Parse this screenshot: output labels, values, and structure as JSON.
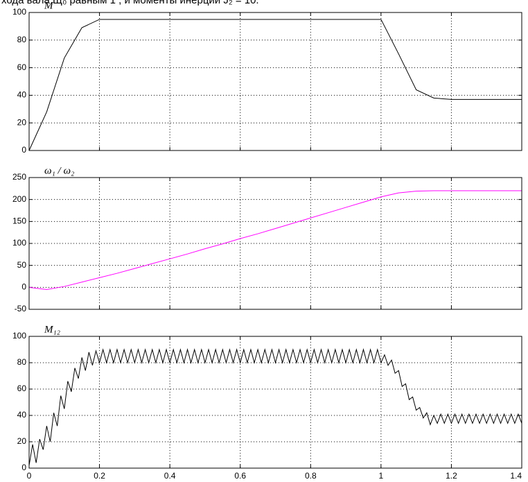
{
  "caption": "хода вала Щ₀ равным 1 , и моменты инерции J₂ = 10.",
  "chart_data": [
    {
      "type": "line",
      "title": "M",
      "color": "#000000",
      "grid": true,
      "show_xtick_labels": false,
      "xlim": [
        0,
        1.4
      ],
      "xticks": [
        0,
        0.2,
        0.4,
        0.6,
        0.8,
        1,
        1.2,
        1.4
      ],
      "ylim": [
        0,
        100
      ],
      "yticks": [
        0,
        20,
        40,
        60,
        80,
        100
      ],
      "x": [
        0,
        0.05,
        0.1,
        0.15,
        0.2,
        0.25,
        0.3,
        0.35,
        0.4,
        0.45,
        0.5,
        0.55,
        0.6,
        0.65,
        0.7,
        0.75,
        0.8,
        0.85,
        0.9,
        0.95,
        1,
        1.05,
        1.1,
        1.15,
        1.2,
        1.25,
        1.3,
        1.35,
        1.4
      ],
      "values": [
        0,
        28,
        67,
        89,
        95,
        95,
        95,
        95,
        95,
        95,
        95,
        95,
        95,
        95,
        95,
        95,
        95,
        95,
        95,
        95,
        95,
        70,
        44,
        38,
        37,
        37,
        37,
        37,
        37
      ]
    },
    {
      "type": "line",
      "title": "ω₁ / ω₂",
      "color": "#ff00ff",
      "grid": true,
      "show_xtick_labels": false,
      "xlim": [
        0,
        1.4
      ],
      "xticks": [
        0,
        0.2,
        0.4,
        0.6,
        0.8,
        1,
        1.2,
        1.4
      ],
      "ylim": [
        -50,
        250
      ],
      "yticks": [
        -50,
        0,
        50,
        100,
        150,
        200,
        250
      ],
      "x": [
        0,
        0.05,
        0.1,
        0.15,
        0.2,
        0.25,
        0.3,
        0.35,
        0.4,
        0.45,
        0.5,
        0.55,
        0.6,
        0.65,
        0.7,
        0.75,
        0.8,
        0.85,
        0.9,
        0.95,
        1,
        1.05,
        1.1,
        1.15,
        1.2,
        1.25,
        1.3,
        1.35,
        1.4
      ],
      "values": [
        0,
        -5,
        2,
        12,
        22,
        32,
        43,
        54,
        65,
        76,
        88,
        99,
        111,
        122,
        134,
        146,
        158,
        170,
        182,
        194,
        206,
        215,
        219,
        220,
        220,
        220,
        220,
        220,
        220
      ]
    },
    {
      "type": "line",
      "title": "M₁₂",
      "color": "#000000",
      "grid": true,
      "show_xtick_labels": true,
      "xlim": [
        0,
        1.4
      ],
      "xticks": [
        0,
        0.2,
        0.4,
        0.6,
        0.8,
        1,
        1.2,
        1.4
      ],
      "ylim": [
        0,
        100
      ],
      "yticks": [
        0,
        20,
        40,
        60,
        80,
        100
      ],
      "x": [
        0,
        0.01,
        0.02,
        0.03,
        0.04,
        0.05,
        0.06,
        0.07,
        0.08,
        0.09,
        0.1,
        0.11,
        0.12,
        0.13,
        0.14,
        0.15,
        0.16,
        0.17,
        0.18,
        0.19,
        0.2,
        0.21,
        0.22,
        0.23,
        0.24,
        0.25,
        0.26,
        0.27,
        0.28,
        0.29,
        0.3,
        0.31,
        0.32,
        0.33,
        0.34,
        0.35,
        0.36,
        0.37,
        0.38,
        0.39,
        0.4,
        0.41,
        0.42,
        0.43,
        0.44,
        0.45,
        0.46,
        0.47,
        0.48,
        0.49,
        0.5,
        0.51,
        0.52,
        0.53,
        0.54,
        0.55,
        0.56,
        0.57,
        0.58,
        0.59,
        0.6,
        0.61,
        0.62,
        0.63,
        0.64,
        0.65,
        0.66,
        0.67,
        0.68,
        0.69,
        0.7,
        0.71,
        0.72,
        0.73,
        0.74,
        0.75,
        0.76,
        0.77,
        0.78,
        0.79,
        0.8,
        0.81,
        0.82,
        0.83,
        0.84,
        0.85,
        0.86,
        0.87,
        0.88,
        0.89,
        0.9,
        0.91,
        0.92,
        0.93,
        0.94,
        0.95,
        0.96,
        0.97,
        0.98,
        0.99,
        1,
        1.01,
        1.02,
        1.03,
        1.04,
        1.05,
        1.06,
        1.07,
        1.08,
        1.09,
        1.1,
        1.11,
        1.12,
        1.13,
        1.14,
        1.15,
        1.16,
        1.17,
        1.18,
        1.19,
        1.2,
        1.21,
        1.22,
        1.23,
        1.24,
        1.25,
        1.26,
        1.27,
        1.28,
        1.29,
        1.3,
        1.31,
        1.32,
        1.33,
        1.34,
        1.35,
        1.36,
        1.37,
        1.38,
        1.39,
        1.4
      ],
      "values": [
        2,
        18,
        4,
        22,
        14,
        32,
        20,
        42,
        32,
        55,
        45,
        66,
        58,
        76,
        68,
        84,
        74,
        88,
        78,
        89,
        80,
        90,
        80,
        90,
        80,
        90,
        80,
        90,
        80,
        90,
        80,
        90,
        80,
        90,
        80,
        90,
        80,
        90,
        80,
        90,
        80,
        90,
        80,
        90,
        80,
        90,
        80,
        90,
        80,
        90,
        80,
        90,
        80,
        90,
        80,
        90,
        80,
        90,
        80,
        90,
        80,
        90,
        80,
        90,
        80,
        90,
        80,
        90,
        80,
        90,
        80,
        90,
        80,
        90,
        80,
        90,
        80,
        90,
        80,
        90,
        80,
        90,
        80,
        90,
        80,
        90,
        80,
        90,
        80,
        90,
        80,
        90,
        80,
        90,
        80,
        90,
        80,
        90,
        80,
        90,
        80,
        86,
        78,
        82,
        72,
        74,
        62,
        64,
        52,
        54,
        44,
        46,
        38,
        42,
        33,
        40,
        34,
        41,
        34,
        41,
        34,
        41,
        34,
        41,
        34,
        41,
        34,
        41,
        34,
        41,
        34,
        41,
        34,
        41,
        34,
        41,
        34,
        41,
        34,
        41,
        34
      ]
    }
  ]
}
